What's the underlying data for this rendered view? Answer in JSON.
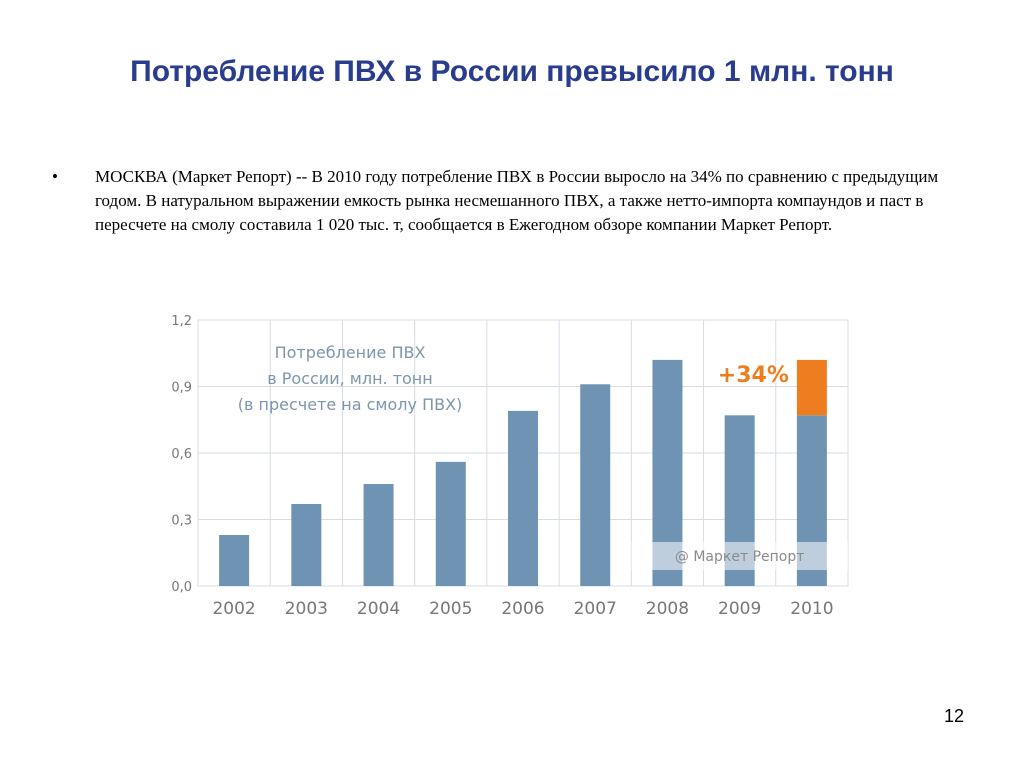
{
  "slide": {
    "title": "Потребление ПВХ в России превысило 1 млн. тонн",
    "bullet": "МОСКВА (Маркет Репорт) -- В 2010 году потребление ПВХ в России выросло на 34% по сравнению с предыдущим годом. В натуральном выражении емкость рынка несмешанного ПВХ, а также нетто-импорта компаундов и паст в пересчете на смолу составила 1 020 тыс. т, сообщается в Ежегодном обзоре компании Маркет Репорт.",
    "page_number": "12"
  },
  "chart_data": {
    "type": "bar",
    "title_lines": [
      "Потребление ПВХ",
      "в России, млн. тонн",
      "(в пресчете на смолу ПВХ)"
    ],
    "categories": [
      "2002",
      "2003",
      "2004",
      "2005",
      "2006",
      "2007",
      "2008",
      "2009",
      "2010"
    ],
    "values": [
      0.23,
      0.37,
      0.46,
      0.56,
      0.79,
      0.91,
      1.02,
      0.77,
      1.02
    ],
    "increase_segment": {
      "category": "2010",
      "from": 0.77,
      "to": 1.02,
      "label": "+34%"
    },
    "yticks": [
      "1,2",
      "0,9",
      "0,6",
      "0,3",
      "0,0"
    ],
    "ytick_values": [
      1.2,
      0.9,
      0.6,
      0.3,
      0.0
    ],
    "ylim": [
      0,
      1.2
    ],
    "watermark": "@ Маркет Репорт",
    "colors": {
      "bar": "#6f93b3",
      "increase": "#ee7d1f",
      "grid": "#d7dde3",
      "title_text": "#7d95ae",
      "tick_text": "#777777",
      "percent_text": "#ee7d1f"
    },
    "grid": true
  }
}
